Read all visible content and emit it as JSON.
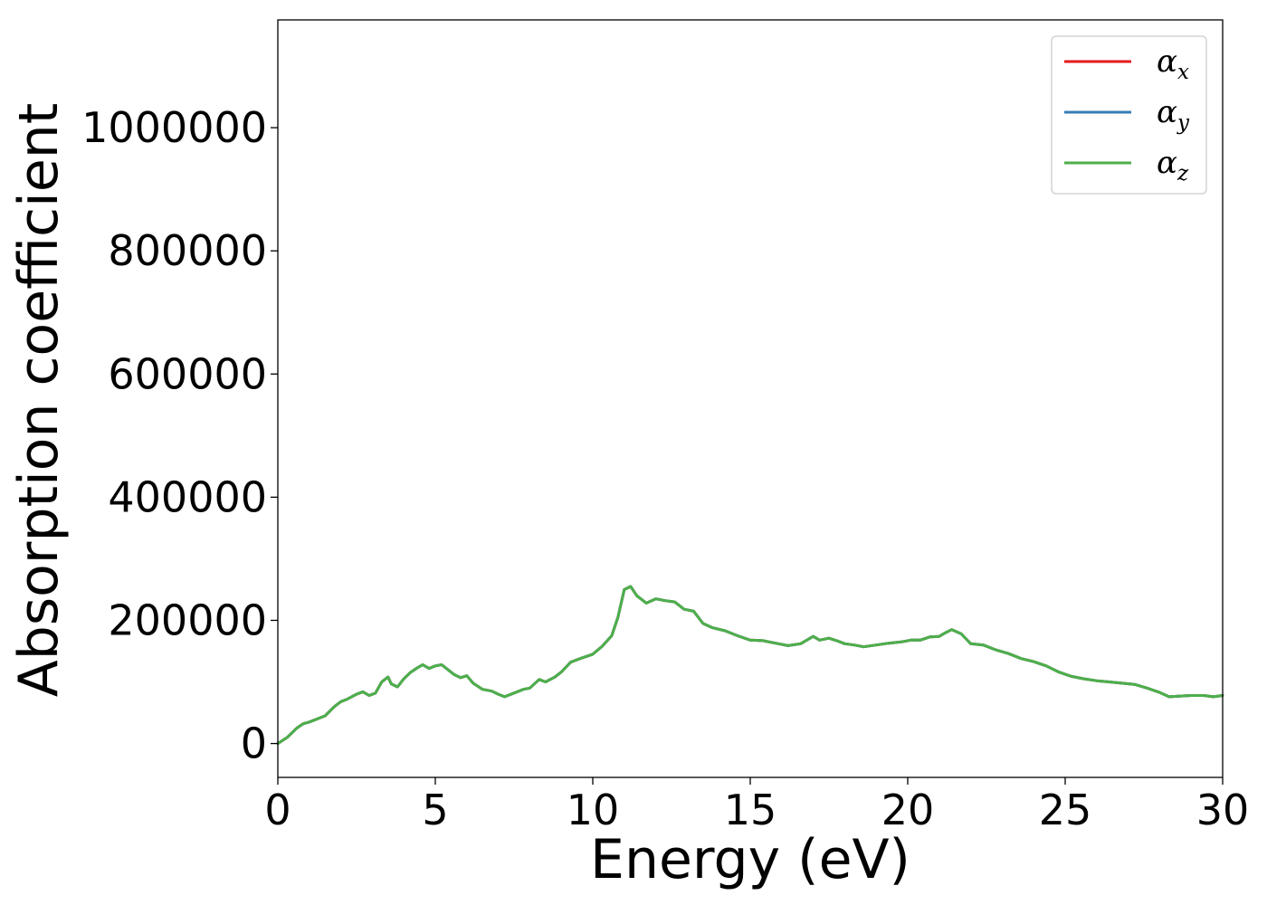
{
  "chart_data": {
    "type": "line",
    "title": "",
    "xlabel": "Energy (eV)",
    "ylabel": "Absorption coefficient",
    "xlim": [
      0,
      30
    ],
    "ylim": [
      -55000,
      1175000
    ],
    "xticks": [
      0,
      5,
      10,
      15,
      20,
      25,
      30
    ],
    "xtick_labels": [
      "0",
      "5",
      "10",
      "15",
      "20",
      "25",
      "30"
    ],
    "yticks": [
      0,
      200000,
      400000,
      600000,
      800000,
      1000000
    ],
    "ytick_labels": [
      "0",
      "200000",
      "400000",
      "600000",
      "800000",
      "1000000"
    ],
    "grid": false,
    "legend_position": "top-right",
    "x": [
      0,
      0.3,
      0.6,
      0.8,
      1.0,
      1.5,
      1.8,
      2.0,
      2.2,
      2.5,
      2.7,
      2.9,
      3.1,
      3.3,
      3.5,
      3.6,
      3.8,
      4.0,
      4.2,
      4.4,
      4.6,
      4.8,
      5.0,
      5.2,
      5.4,
      5.6,
      5.8,
      6.0,
      6.2,
      6.5,
      6.8,
      7.0,
      7.2,
      7.5,
      7.8,
      8.0,
      8.3,
      8.5,
      8.8,
      9.0,
      9.3,
      9.6,
      10.0,
      10.3,
      10.6,
      10.8,
      11.0,
      11.2,
      11.4,
      11.7,
      12.0,
      12.3,
      12.6,
      12.9,
      13.2,
      13.5,
      13.8,
      14.2,
      14.6,
      15.0,
      15.4,
      15.8,
      16.2,
      16.6,
      17.0,
      17.2,
      17.5,
      17.8,
      18.0,
      18.3,
      18.6,
      19.0,
      19.4,
      19.8,
      20.1,
      20.4,
      20.7,
      21.0,
      21.2,
      21.4,
      21.7,
      22.0,
      22.4,
      22.8,
      23.2,
      23.6,
      24.0,
      24.4,
      24.8,
      25.2,
      25.6,
      26.0,
      26.4,
      26.8,
      27.2,
      27.6,
      28.0,
      28.3,
      28.6,
      29.0,
      29.4,
      29.7,
      30.0
    ],
    "series": [
      {
        "name": "α_x",
        "color": "#e41a1c",
        "values": [
          0,
          10000,
          25000,
          32000,
          35000,
          45000,
          60000,
          68000,
          72000,
          80000,
          84000,
          78000,
          82000,
          100000,
          108000,
          97000,
          92000,
          105000,
          115000,
          122000,
          128000,
          122000,
          126000,
          128000,
          120000,
          112000,
          107000,
          110000,
          98000,
          88000,
          85000,
          80000,
          76000,
          82000,
          88000,
          90000,
          104000,
          100000,
          108000,
          116000,
          132000,
          138000,
          145000,
          158000,
          175000,
          205000,
          250000,
          255000,
          240000,
          228000,
          235000,
          232000,
          230000,
          218000,
          215000,
          195000,
          188000,
          183000,
          175000,
          168000,
          167000,
          163000,
          159000,
          162000,
          174000,
          168000,
          171000,
          166000,
          162000,
          160000,
          157000,
          160000,
          163000,
          165000,
          168000,
          168000,
          173000,
          174000,
          180000,
          185000,
          178000,
          162000,
          160000,
          152000,
          146000,
          138000,
          133000,
          126000,
          116000,
          109000,
          105000,
          102000,
          100000,
          98000,
          96000,
          90000,
          83000,
          76000,
          77000,
          78000,
          78000,
          76000,
          78000
        ]
      },
      {
        "name": "α_y",
        "color": "#377eb8",
        "values": [
          0,
          10000,
          25000,
          32000,
          35000,
          45000,
          60000,
          68000,
          72000,
          80000,
          84000,
          78000,
          82000,
          100000,
          108000,
          97000,
          92000,
          105000,
          115000,
          122000,
          128000,
          122000,
          126000,
          128000,
          120000,
          112000,
          107000,
          110000,
          98000,
          88000,
          85000,
          80000,
          76000,
          82000,
          88000,
          90000,
          104000,
          100000,
          108000,
          116000,
          132000,
          138000,
          145000,
          158000,
          175000,
          205000,
          250000,
          255000,
          240000,
          228000,
          235000,
          232000,
          230000,
          218000,
          215000,
          195000,
          188000,
          183000,
          175000,
          168000,
          167000,
          163000,
          159000,
          162000,
          174000,
          168000,
          171000,
          166000,
          162000,
          160000,
          157000,
          160000,
          163000,
          165000,
          168000,
          168000,
          173000,
          174000,
          180000,
          185000,
          178000,
          162000,
          160000,
          152000,
          146000,
          138000,
          133000,
          126000,
          116000,
          109000,
          105000,
          102000,
          100000,
          98000,
          96000,
          90000,
          83000,
          76000,
          77000,
          78000,
          78000,
          76000,
          78000
        ]
      },
      {
        "name": "α_z",
        "color": "#4daf4a",
        "values": [
          0,
          10000,
          25000,
          32000,
          35000,
          45000,
          60000,
          68000,
          72000,
          80000,
          84000,
          78000,
          82000,
          100000,
          108000,
          97000,
          92000,
          105000,
          115000,
          122000,
          128000,
          122000,
          126000,
          128000,
          120000,
          112000,
          107000,
          110000,
          98000,
          88000,
          85000,
          80000,
          76000,
          82000,
          88000,
          90000,
          104000,
          100000,
          108000,
          116000,
          132000,
          138000,
          145000,
          158000,
          175000,
          205000,
          250000,
          255000,
          240000,
          228000,
          235000,
          232000,
          230000,
          218000,
          215000,
          195000,
          188000,
          183000,
          175000,
          168000,
          167000,
          163000,
          159000,
          162000,
          174000,
          168000,
          171000,
          166000,
          162000,
          160000,
          157000,
          160000,
          163000,
          165000,
          168000,
          168000,
          173000,
          174000,
          180000,
          185000,
          178000,
          162000,
          160000,
          152000,
          146000,
          138000,
          133000,
          126000,
          116000,
          109000,
          105000,
          102000,
          100000,
          98000,
          96000,
          90000,
          83000,
          76000,
          77000,
          78000,
          78000,
          76000,
          78000
        ]
      }
    ],
    "legend": [
      {
        "symbol": "α",
        "subscript": "x"
      },
      {
        "symbol": "α",
        "subscript": "y"
      },
      {
        "symbol": "α",
        "subscript": "z"
      }
    ]
  }
}
